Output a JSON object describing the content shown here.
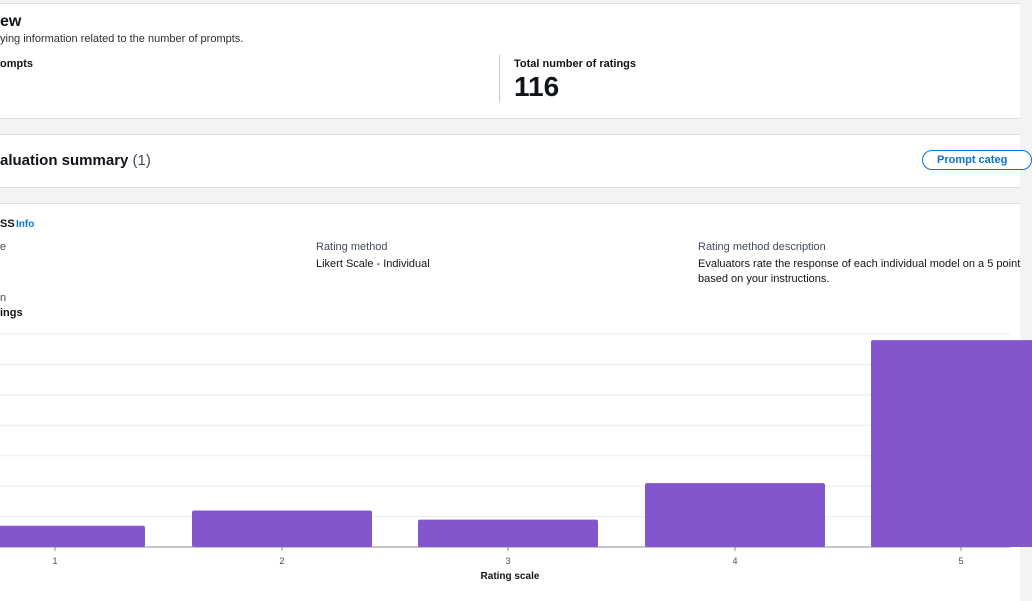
{
  "overview": {
    "title": "ew",
    "description": "ying information related to the number of prompts.",
    "prompts_label": "ompts",
    "ratings_label": "Total number of ratings",
    "ratings_value": "116"
  },
  "summary": {
    "title": "aluation summary",
    "count": "(1)",
    "button_label": "Prompt categ"
  },
  "metric": {
    "name": "SS",
    "info_link": "Info",
    "left_fragment_1": "e",
    "left_fragment_2": "n",
    "rating_method_label": "Rating method",
    "rating_method_value": "Likert Scale - Individual",
    "rating_desc_label": "Rating method description",
    "rating_desc_line1": "Evaluators rate the response of each individual model on a 5 point",
    "rating_desc_line2": "based on your instructions.",
    "chart_label": "ings"
  },
  "chart_data": {
    "type": "bar",
    "categories": [
      "1",
      "2",
      "3",
      "4",
      "5"
    ],
    "values": [
      7,
      12,
      9,
      21,
      68
    ],
    "xlabel": "Rating scale",
    "ylabel": "",
    "ylim": [
      0,
      70
    ],
    "grid": true,
    "bar_color": "#8456ce"
  },
  "colors": {
    "accent": "#0972d3",
    "bar": "#8456ce",
    "background": "#f2f3f3"
  }
}
